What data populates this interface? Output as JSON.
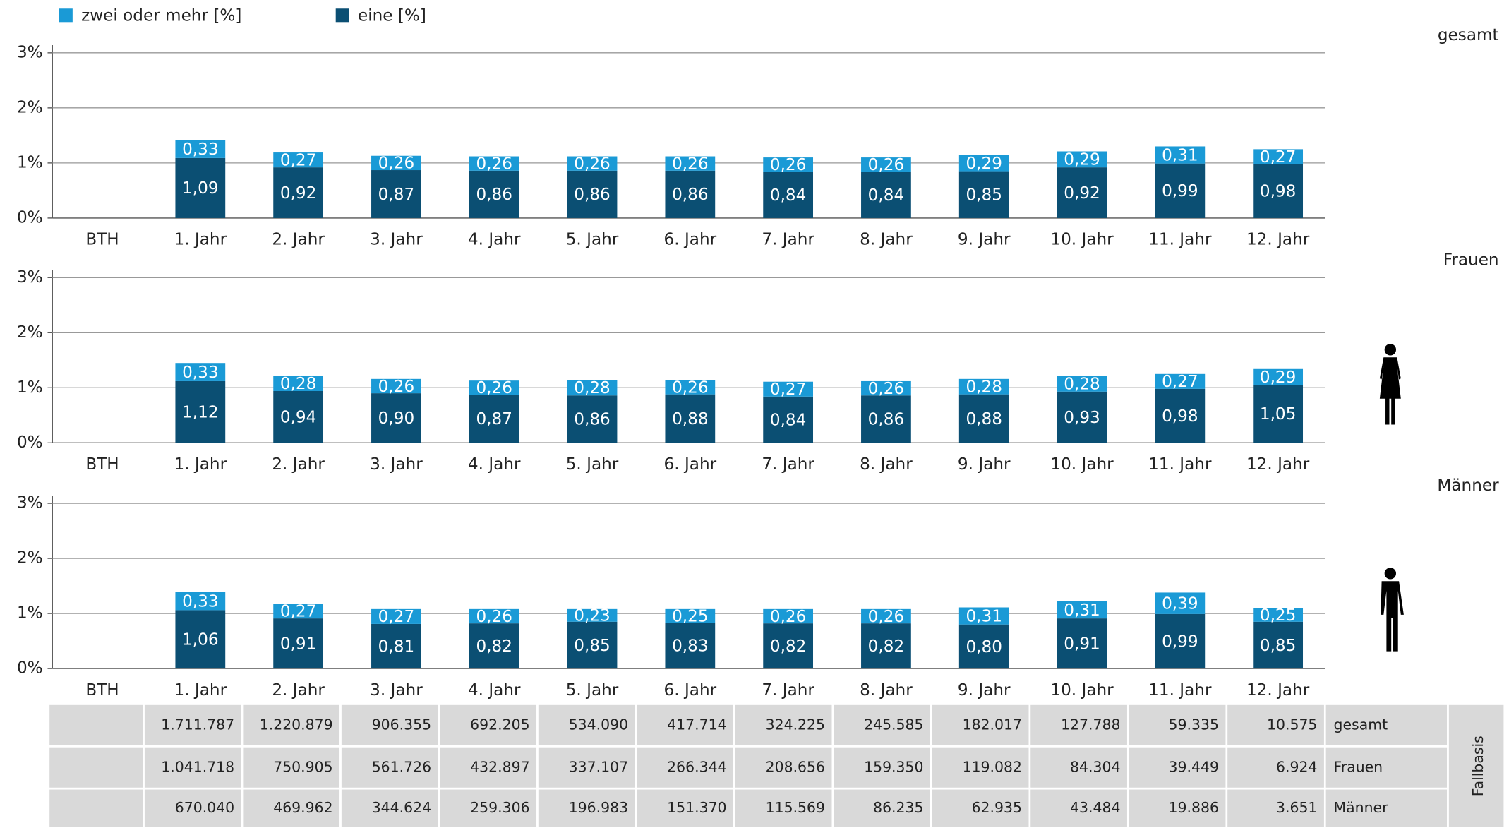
{
  "legend_series": [
    {
      "name": "zwei oder mehr [%]",
      "color": "#1a9ad6"
    },
    {
      "name": "eine [%]",
      "color": "#0b4f73"
    }
  ],
  "chart_data": [
    {
      "type": "stacked_bar",
      "subtitle": "gesamt",
      "categories": [
        "BTH",
        "1. Jahr",
        "2. Jahr",
        "3. Jahr",
        "4. Jahr",
        "5. Jahr",
        "6. Jahr",
        "7. Jahr",
        "8. Jahr",
        "9. Jahr",
        "10. Jahr",
        "11. Jahr",
        "12. Jahr"
      ],
      "series": [
        {
          "color": "#1a9ad6",
          "values": [
            null,
            0.33,
            0.27,
            0.26,
            0.26,
            0.26,
            0.26,
            0.26,
            0.26,
            0.29,
            0.29,
            0.31,
            0.27
          ],
          "value_labels": [
            null,
            "0,33",
            "0,27",
            "0,26",
            "0,26",
            "0,26",
            "0,26",
            "0,26",
            "0,26",
            "0,29",
            "0,29",
            "0,31",
            "0,27"
          ]
        },
        {
          "color": "#0b4f73",
          "values": [
            null,
            1.09,
            0.92,
            0.87,
            0.86,
            0.86,
            0.86,
            0.84,
            0.84,
            0.85,
            0.92,
            0.99,
            0.98
          ],
          "value_labels": [
            null,
            "1,09",
            "0,92",
            "0,87",
            "0,86",
            "0,86",
            "0,86",
            "0,84",
            "0,84",
            "0,85",
            "0,92",
            "0,99",
            "0,98"
          ]
        }
      ],
      "ylim": [
        0,
        3
      ],
      "yticks": [
        {
          "value": 0,
          "label": "0%"
        },
        {
          "value": 1,
          "label": "1%"
        },
        {
          "value": 2,
          "label": "2%"
        },
        {
          "value": 3,
          "label": "3%"
        }
      ],
      "grid": true
    },
    {
      "type": "stacked_bar",
      "subtitle": "Frauen",
      "categories": [
        "BTH",
        "1. Jahr",
        "2. Jahr",
        "3. Jahr",
        "4. Jahr",
        "5. Jahr",
        "6. Jahr",
        "7. Jahr",
        "8. Jahr",
        "9. Jahr",
        "10. Jahr",
        "11. Jahr",
        "12. Jahr"
      ],
      "series": [
        {
          "color": "#1a9ad6",
          "values": [
            null,
            0.33,
            0.28,
            0.26,
            0.26,
            0.28,
            0.26,
            0.27,
            0.26,
            0.28,
            0.28,
            0.27,
            0.29
          ],
          "value_labels": [
            null,
            "0,33",
            "0,28",
            "0,26",
            "0,26",
            "0,28",
            "0,26",
            "0,27",
            "0,26",
            "0,28",
            "0,28",
            "0,27",
            "0,29"
          ]
        },
        {
          "color": "#0b4f73",
          "values": [
            null,
            1.12,
            0.94,
            0.9,
            0.87,
            0.86,
            0.88,
            0.84,
            0.86,
            0.88,
            0.93,
            0.98,
            1.05
          ],
          "value_labels": [
            null,
            "1,12",
            "0,94",
            "0,90",
            "0,87",
            "0,86",
            "0,88",
            "0,84",
            "0,86",
            "0,88",
            "0,93",
            "0,98",
            "1,05"
          ]
        }
      ],
      "ylim": [
        0,
        3
      ],
      "yticks": [
        {
          "value": 0,
          "label": "0%"
        },
        {
          "value": 1,
          "label": "1%"
        },
        {
          "value": 2,
          "label": "2%"
        },
        {
          "value": 3,
          "label": "3%"
        }
      ],
      "grid": true
    },
    {
      "type": "stacked_bar",
      "subtitle": "Männer",
      "categories": [
        "BTH",
        "1. Jahr",
        "2. Jahr",
        "3. Jahr",
        "4. Jahr",
        "5. Jahr",
        "6. Jahr",
        "7. Jahr",
        "8. Jahr",
        "9. Jahr",
        "10. Jahr",
        "11. Jahr",
        "12. Jahr"
      ],
      "series": [
        {
          "color": "#1a9ad6",
          "values": [
            null,
            0.33,
            0.27,
            0.27,
            0.26,
            0.23,
            0.25,
            0.26,
            0.26,
            0.31,
            0.31,
            0.39,
            0.25
          ],
          "value_labels": [
            null,
            "0,33",
            "0,27",
            "0,27",
            "0,26",
            "0,23",
            "0,25",
            "0,26",
            "0,26",
            "0,31",
            "0,31",
            "0,39",
            "0,25"
          ]
        },
        {
          "color": "#0b4f73",
          "values": [
            null,
            1.06,
            0.91,
            0.81,
            0.82,
            0.85,
            0.83,
            0.82,
            0.82,
            0.8,
            0.91,
            0.99,
            0.85
          ],
          "value_labels": [
            null,
            "1,06",
            "0,91",
            "0,81",
            "0,82",
            "0,85",
            "0,83",
            "0,82",
            "0,82",
            "0,80",
            "0,91",
            "0,99",
            "0,85"
          ]
        }
      ],
      "ylim": [
        0,
        3
      ],
      "yticks": [
        {
          "value": 0,
          "label": "0%"
        },
        {
          "value": 1,
          "label": "1%"
        },
        {
          "value": 2,
          "label": "2%"
        },
        {
          "value": 3,
          "label": "3%"
        }
      ],
      "grid": true
    }
  ],
  "table": {
    "side_label": "Fallbasis",
    "rows": [
      {
        "label": "gesamt",
        "cells": [
          "1.711.787",
          "1.220.879",
          "906.355",
          "692.205",
          "534.090",
          "417.714",
          "324.225",
          "245.585",
          "182.017",
          "127.788",
          "59.335",
          "10.575"
        ]
      },
      {
        "label": "Frauen",
        "cells": [
          "1.041.718",
          "750.905",
          "561.726",
          "432.897",
          "337.107",
          "266.344",
          "208.656",
          "159.350",
          "119.082",
          "84.304",
          "39.449",
          "6.924"
        ]
      },
      {
        "label": "Männer",
        "cells": [
          "670.040",
          "469.962",
          "344.624",
          "259.306",
          "196.983",
          "151.370",
          "115.569",
          "86.235",
          "62.935",
          "43.484",
          "19.886",
          "3.651"
        ]
      }
    ]
  }
}
